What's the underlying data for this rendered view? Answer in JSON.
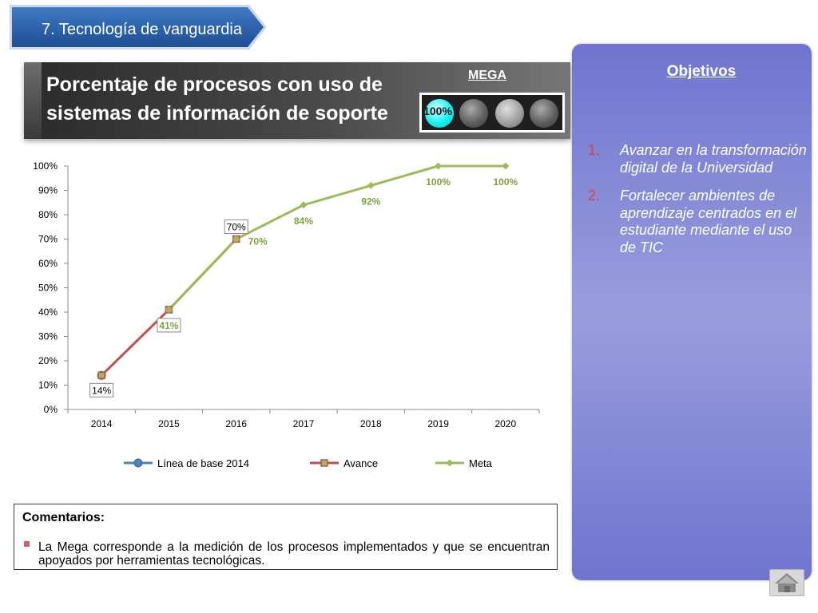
{
  "banner": {
    "text": "7. Tecnología de vanguardia"
  },
  "title": {
    "line1": "Porcentaje de procesos con uso de",
    "line2": "sistemas de información de soporte"
  },
  "mega": {
    "label": "MEGA",
    "value": "100%",
    "lights_on": 1,
    "lights_total": 4
  },
  "objectives": {
    "title": "Objetivos",
    "items": [
      {
        "num": "1.",
        "text": "Avanzar en la transformación digital de la Universidad"
      },
      {
        "num": "2.",
        "text": "Fortalecer ambientes de aprendizaje centrados en el estudiante mediante el uso de TIC"
      }
    ]
  },
  "comments": {
    "title": "Comentarios:",
    "text": "La Mega corresponde a la medición de los procesos implementados y que se encuentran apoyados por herramientas tecnológicas."
  },
  "chart_data": {
    "type": "line",
    "x": [
      "2014",
      "2015",
      "2016",
      "2017",
      "2018",
      "2019",
      "2020"
    ],
    "ylim": [
      0,
      100
    ],
    "yticks": [
      "0%",
      "10%",
      "20%",
      "30%",
      "40%",
      "50%",
      "60%",
      "70%",
      "80%",
      "90%",
      "100%"
    ],
    "series": [
      {
        "name": "Línea de base 2014",
        "color": "#4f81bd",
        "marker": "circle",
        "values": [
          14,
          null,
          null,
          null,
          null,
          null,
          null
        ],
        "labels": [
          "14%",
          null,
          null,
          null,
          null,
          null,
          null
        ]
      },
      {
        "name": "Avance",
        "color": "#c0504d",
        "marker": "square",
        "values": [
          14,
          41,
          70,
          null,
          null,
          null,
          null
        ],
        "labels": [
          null,
          null,
          "70%",
          null,
          null,
          null,
          null
        ]
      },
      {
        "name": "Meta",
        "color": "#9bbb59",
        "marker": "diamond",
        "values": [
          null,
          41,
          70,
          84,
          92,
          100,
          100
        ],
        "labels": [
          null,
          "41%",
          "70%",
          "84%",
          "92%",
          "100%",
          "100%"
        ]
      }
    ],
    "legend_position": "bottom",
    "grid": false
  }
}
